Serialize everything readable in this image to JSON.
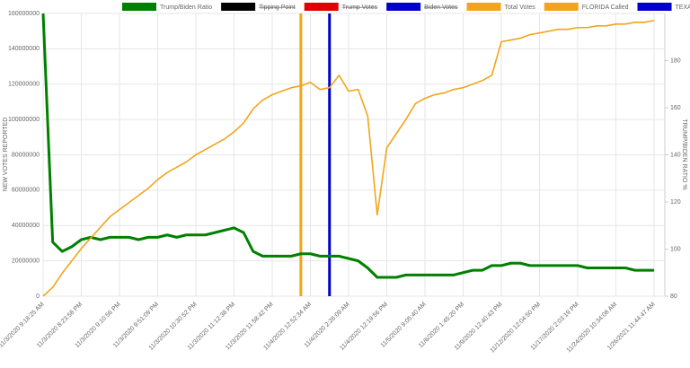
{
  "chart_data": {
    "type": "line",
    "y_label": "NEW VOTES REPORTED",
    "y2_label": "TRUMP/BIDEN RATIO %",
    "ylim": [
      0,
      160000000
    ],
    "yticks": [
      0,
      20000000,
      40000000,
      60000000,
      80000000,
      100000000,
      120000000,
      140000000,
      160000000
    ],
    "y2lim": [
      80,
      200
    ],
    "y2ticks": [
      80,
      100,
      120,
      140,
      160,
      180
    ],
    "grid": true,
    "legend": "top",
    "categories": [
      "11/3/2020 9:18:25 AM",
      null,
      null,
      null,
      "11/3/2020 8:23:58 PM",
      null,
      null,
      null,
      "11/3/2020 9:10:56 PM",
      null,
      null,
      null,
      "11/3/2020 9:51:09 PM",
      null,
      null,
      null,
      "11/3/2020 10:30:52 PM",
      null,
      null,
      null,
      "11/3/2020 11:12:38 PM",
      null,
      null,
      null,
      "11/3/2020 11:58:42 PM",
      null,
      null,
      null,
      "11/4/2020 12:52:34 AM",
      null,
      null,
      null,
      "11/4/2020 2:26:09 AM",
      null,
      null,
      null,
      "11/4/2020 12:19:56 PM",
      null,
      null,
      null,
      "11/5/2020 9:05:40 AM",
      null,
      null,
      null,
      "11/6/2020 1:45:20 PM",
      null,
      null,
      null,
      "11/9/2020 12:40:43 PM",
      null,
      null,
      null,
      "11/12/2020 12:04:50 PM",
      null,
      null,
      null,
      "11/17/2020 2:03:19 PM",
      null,
      null,
      null,
      "11/24/2020 10:34:08 AM",
      null,
      null,
      null,
      "1/26/2021 11:44:47 AM"
    ],
    "series": [
      {
        "name": "Trump/Biden Ratio",
        "color": "#008000",
        "type": "line",
        "axis": "y2",
        "values": [
          200,
          103,
          99,
          101,
          104,
          105,
          104,
          105,
          105,
          105,
          104,
          105,
          105,
          106,
          105,
          106,
          106,
          106,
          107,
          108,
          109,
          107,
          99,
          97,
          97,
          97,
          97,
          98,
          98,
          97,
          97,
          97,
          96,
          95,
          92,
          88,
          88,
          88,
          89,
          89,
          89,
          89,
          89,
          89,
          90,
          91,
          91,
          93,
          93,
          94,
          94,
          93,
          93,
          93,
          93,
          93,
          93,
          92,
          92,
          92,
          92,
          92,
          91,
          91,
          91
        ]
      },
      {
        "name": "Tipping Point",
        "color": "#000000",
        "type": "line",
        "hidden": true
      },
      {
        "name": "Trump Votes",
        "color": "#e00000",
        "type": "line",
        "hidden": true
      },
      {
        "name": "Biden Votes",
        "color": "#0000cc",
        "type": "line",
        "hidden": true
      },
      {
        "name": "Total Votes",
        "color": "#f2a51a",
        "type": "line",
        "values": [
          0,
          5000000,
          13000000,
          20000000,
          27000000,
          33000000,
          39000000,
          45000000,
          49000000,
          53000000,
          57000000,
          61000000,
          66000000,
          70000000,
          73000000,
          76000000,
          80000000,
          83000000,
          86000000,
          89000000,
          93000000,
          98000000,
          106000000,
          111000000,
          114000000,
          116000000,
          118000000,
          119000000,
          121000000,
          117000000,
          118000000,
          125000000,
          116000000,
          117000000,
          102000000,
          46000000,
          84000000,
          92000000,
          100000000,
          109000000,
          112000000,
          114000000,
          115000000,
          117000000,
          118000000,
          120000000,
          122000000,
          125000000,
          144000000,
          145000000,
          146000000,
          148000000,
          149000000,
          150000000,
          151000000,
          151000000,
          152000000,
          152000000,
          153000000,
          153000000,
          154000000,
          154000000,
          155000000,
          155000000,
          156000000
        ]
      },
      {
        "name": "FLORIDA Called",
        "color": "#f2a51a",
        "type": "bar",
        "values": [
          null,
          null,
          null,
          null,
          null,
          null,
          null,
          null,
          null,
          null,
          null,
          null,
          null,
          null,
          null,
          null,
          null,
          null,
          null,
          null,
          null,
          null,
          null,
          null,
          null,
          null,
          null,
          160000000,
          null,
          null,
          null,
          null,
          null,
          null,
          null,
          null,
          null,
          null,
          null,
          null,
          null,
          null,
          null,
          null,
          null,
          null,
          null,
          null,
          null,
          null,
          null,
          null,
          null,
          null,
          null,
          null,
          null,
          null,
          null,
          null,
          null,
          null,
          null,
          null,
          null
        ]
      },
      {
        "name": "TEXAS Called",
        "color": "#0000cc",
        "type": "bar",
        "values": [
          null,
          null,
          null,
          null,
          null,
          null,
          null,
          null,
          null,
          null,
          null,
          null,
          null,
          null,
          null,
          null,
          null,
          null,
          null,
          null,
          null,
          null,
          null,
          null,
          null,
          null,
          null,
          null,
          null,
          null,
          160000000,
          null,
          null,
          null,
          null,
          null,
          null,
          null,
          null,
          null,
          null,
          null,
          null,
          null,
          null,
          null,
          null,
          null,
          null,
          null,
          null,
          null,
          null,
          null,
          null,
          null,
          null,
          null,
          null,
          null,
          null,
          null,
          null,
          null,
          null
        ]
      }
    ]
  }
}
